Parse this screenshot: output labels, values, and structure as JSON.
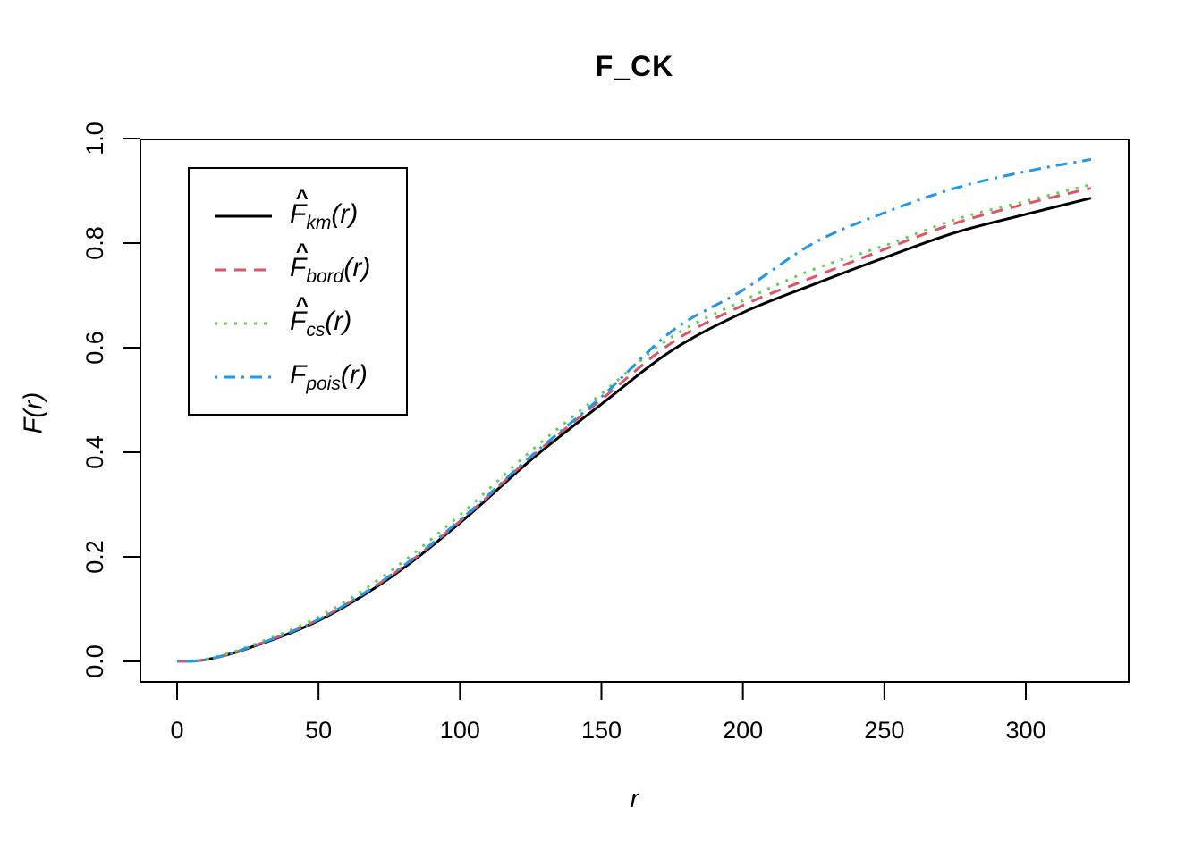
{
  "title": "F_CK",
  "axes": {
    "x_label": "r",
    "y_label": "F(r)",
    "x_ticks": [
      {
        "v": 0,
        "label": "0"
      },
      {
        "v": 50,
        "label": "50"
      },
      {
        "v": 100,
        "label": "100"
      },
      {
        "v": 150,
        "label": "150"
      },
      {
        "v": 200,
        "label": "200"
      },
      {
        "v": 250,
        "label": "250"
      },
      {
        "v": 300,
        "label": "300"
      }
    ],
    "y_ticks": [
      {
        "v": 0.0,
        "label": "0.0"
      },
      {
        "v": 0.2,
        "label": "0.2"
      },
      {
        "v": 0.4,
        "label": "0.4"
      },
      {
        "v": 0.6,
        "label": "0.6"
      },
      {
        "v": 0.8,
        "label": "0.8"
      },
      {
        "v": 1.0,
        "label": "1.0"
      }
    ]
  },
  "legend": {
    "items": [
      {
        "hat": true,
        "base": "F",
        "sub": "km",
        "arg": "(r)",
        "color": "#000000",
        "linetype": "solid"
      },
      {
        "hat": true,
        "base": "F",
        "sub": "bord",
        "arg": "(r)",
        "color": "#DF536B",
        "linetype": "dashed"
      },
      {
        "hat": true,
        "base": "F",
        "sub": "cs",
        "arg": "(r)",
        "color": "#61D04F",
        "linetype": "dotted"
      },
      {
        "hat": false,
        "base": "F",
        "sub": "pois",
        "arg": "(r)",
        "color": "#2297E6",
        "linetype": "dashdot"
      }
    ]
  },
  "chart_data": {
    "type": "line",
    "title": "F_CK",
    "xlabel": "r",
    "ylabel": "F(r)",
    "xlim": [
      0,
      336
    ],
    "ylim": [
      0,
      1
    ],
    "grid": false,
    "legend_position": "top-left",
    "x": [
      0,
      10,
      25,
      50,
      75,
      100,
      125,
      150,
      175,
      200,
      225,
      250,
      275,
      300,
      323
    ],
    "series": [
      {
        "name": "F_km(r)",
        "color": "#000000",
        "linetype": "solid",
        "values": [
          0,
          0.003,
          0.025,
          0.078,
          0.159,
          0.265,
          0.385,
          0.492,
          0.595,
          0.667,
          0.721,
          0.772,
          0.82,
          0.855,
          0.886
        ]
      },
      {
        "name": "F_bord(r)",
        "color": "#DF536B",
        "linetype": "dashed",
        "values": [
          0,
          0.003,
          0.026,
          0.08,
          0.162,
          0.268,
          0.39,
          0.501,
          0.61,
          0.681,
          0.735,
          0.788,
          0.838,
          0.875,
          0.905
        ]
      },
      {
        "name": "F_cs(r)",
        "color": "#61D04F",
        "linetype": "dotted",
        "values": [
          0,
          0.004,
          0.028,
          0.085,
          0.171,
          0.28,
          0.402,
          0.512,
          0.621,
          0.69,
          0.75,
          0.795,
          0.845,
          0.88,
          0.912
        ]
      },
      {
        "name": "F_pois(r)",
        "color": "#2297E6",
        "linetype": "dashdot",
        "values": [
          0,
          0.003,
          0.026,
          0.08,
          0.163,
          0.27,
          0.392,
          0.506,
          0.632,
          0.71,
          0.8,
          0.858,
          0.905,
          0.937,
          0.96
        ]
      }
    ]
  }
}
